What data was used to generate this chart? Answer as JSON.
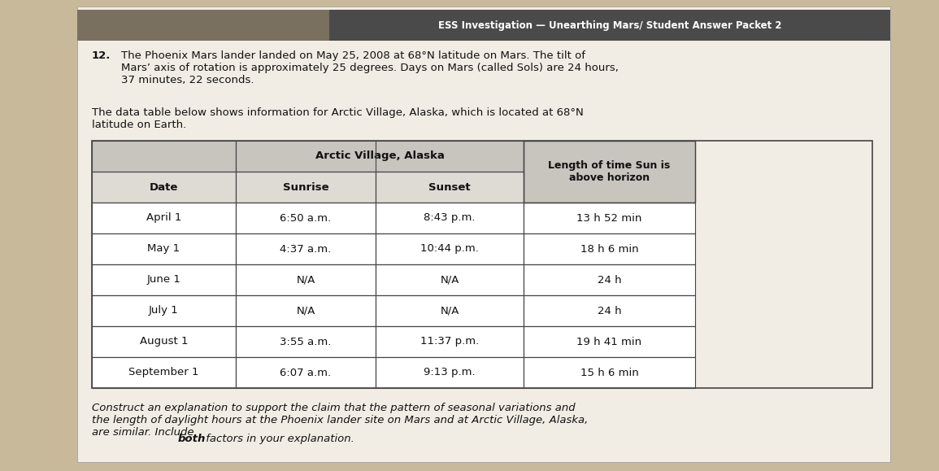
{
  "header_line": "ESS Investigation — Unearthing Mars/ Student Answer Packet 2",
  "question_number": "12.",
  "paragraph1": "The Phoenix Mars lander landed on May 25, 2008 at 68°N latitude on Mars. The tilt of\nMars’ axis of rotation is approximately 25 degrees. Days on Mars (called Sols) are 24 hours,\n37 minutes, 22 seconds.",
  "paragraph2": "The data table below shows information for Arctic Village, Alaska, which is located at 68°N\nlatitude on Earth.",
  "table_main_header": "Arctic Village, Alaska",
  "col_headers": [
    "Date",
    "Sunrise",
    "Sunset",
    "Length of time Sun is\nabove horizon"
  ],
  "rows": [
    [
      "April 1",
      "6:50 a.m.",
      "8:43 p.m.",
      "13 h 52 min"
    ],
    [
      "May 1",
      "4:37 a.m.",
      "10:44 p.m.",
      "18 h 6 min"
    ],
    [
      "June 1",
      "N/A",
      "N/A",
      "24 h"
    ],
    [
      "July 1",
      "N/A",
      "N/A",
      "24 h"
    ],
    [
      "August 1",
      "3:55 a.m.",
      "11:37 p.m.",
      "19 h 41 min"
    ],
    [
      "September 1",
      "6:07 a.m.",
      "9:13 p.m.",
      "15 h 6 min"
    ]
  ],
  "closing_text_italic": "Construct an explanation to support the claim that the pattern of seasonal variations ",
  "closing_line2_italic": "and\nthe length of daylight hours at the Phoenix lander site on Mars and at Arctic Village, Alaska,\nare similar. Include ",
  "closing_text_bold": "both",
  "closing_text_end": " factors in your explanation.",
  "bg_color": "#c8b99a",
  "paper_color": "#f2ede4",
  "table_header_bg": "#c8c4be",
  "table_subheader_bg": "#dedad4",
  "table_row_bg": "#ffffff",
  "border_color": "#444444",
  "text_color": "#111111",
  "header_bar_color": "#4a4a4a",
  "header_bar_left_color": "#7a7060"
}
